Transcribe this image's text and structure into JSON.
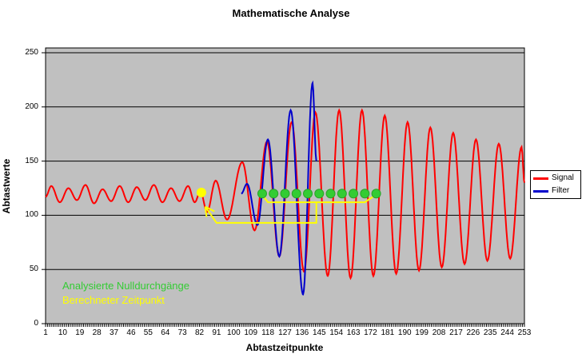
{
  "chart_data": {
    "type": "line",
    "title": "Mathematische Analyse",
    "xlabel": "Abtastzeitpunkte",
    "ylabel": "Abtastwerte",
    "xlim": [
      1,
      253
    ],
    "ylim": [
      0,
      250
    ],
    "grid": true,
    "plot_bg_color": "#C0C0C0",
    "grid_color": "#000000",
    "x_ticks": [
      1,
      10,
      19,
      28,
      37,
      46,
      55,
      64,
      73,
      82,
      91,
      100,
      109,
      118,
      127,
      136,
      145,
      154,
      163,
      172,
      181,
      190,
      199,
      208,
      217,
      226,
      235,
      244,
      253
    ],
    "y_ticks": [
      0,
      50,
      100,
      150,
      200,
      250
    ],
    "series": [
      {
        "name": "Signal",
        "color": "#FF0000",
        "keypoints": [
          [
            1,
            117
          ],
          [
            4,
            127
          ],
          [
            8.5,
            112
          ],
          [
            13,
            125
          ],
          [
            17.5,
            114
          ],
          [
            22,
            128
          ],
          [
            26.5,
            111
          ],
          [
            31,
            124
          ],
          [
            35.5,
            113
          ],
          [
            40,
            127
          ],
          [
            44.5,
            112
          ],
          [
            49,
            126
          ],
          [
            53.5,
            114
          ],
          [
            58,
            128
          ],
          [
            62.5,
            112
          ],
          [
            67,
            125
          ],
          [
            71.5,
            113
          ],
          [
            76,
            127
          ],
          [
            79.5,
            112
          ],
          [
            82.5,
            122
          ],
          [
            86,
            103
          ],
          [
            90.5,
            132
          ],
          [
            96.5,
            96
          ],
          [
            104.5,
            149
          ],
          [
            111,
            86
          ],
          [
            117.5,
            168
          ],
          [
            124,
            62
          ],
          [
            130.5,
            186
          ],
          [
            137,
            48
          ],
          [
            143,
            195
          ],
          [
            149.5,
            44
          ],
          [
            155.5,
            197
          ],
          [
            161.5,
            42
          ],
          [
            167.5,
            197
          ],
          [
            173.5,
            44
          ],
          [
            179.5,
            192
          ],
          [
            185.5,
            46
          ],
          [
            191.5,
            186
          ],
          [
            197.5,
            49
          ],
          [
            203.5,
            181
          ],
          [
            209.5,
            52
          ],
          [
            215.5,
            176
          ],
          [
            221.5,
            55
          ],
          [
            227.5,
            170
          ],
          [
            233.5,
            58
          ],
          [
            239.5,
            166
          ],
          [
            245.5,
            60
          ],
          [
            251.5,
            163
          ],
          [
            253,
            130
          ]
        ]
      },
      {
        "name": "Filter",
        "color": "#0000CC",
        "keypoints": [
          [
            104,
            120
          ],
          [
            107,
            129
          ],
          [
            112.5,
            91
          ],
          [
            118,
            170
          ],
          [
            124,
            62
          ],
          [
            130,
            197
          ],
          [
            136.5,
            27
          ],
          [
            141.5,
            222
          ],
          [
            143.5,
            150
          ]
        ]
      }
    ],
    "markers": {
      "zero_crossings": {
        "label": "Analysierte Nulldurchgänge",
        "color": "#33CC33",
        "samples": [
          115,
          121,
          127,
          133,
          139,
          145,
          151,
          157,
          163,
          169,
          175
        ],
        "value": 120
      },
      "computed_point": {
        "label": "Berechneter Zeitpunkt",
        "color": "#FFFF00",
        "sample": 83,
        "value": 121
      }
    },
    "annotations": {
      "bracket": {
        "color": "#FFFF00",
        "points": [
          [
            115,
            119
          ],
          [
            118,
            112
          ],
          [
            169,
            112
          ],
          [
            175,
            119
          ]
        ]
      },
      "pointer": {
        "color": "#FFFF00",
        "points": [
          [
            143.5,
            112
          ],
          [
            143.5,
            93
          ],
          [
            91,
            93
          ],
          [
            85,
            108
          ]
        ],
        "arrowhead": true
      }
    },
    "legend": {
      "position": "right",
      "items": [
        "Signal",
        "Filter"
      ]
    }
  }
}
